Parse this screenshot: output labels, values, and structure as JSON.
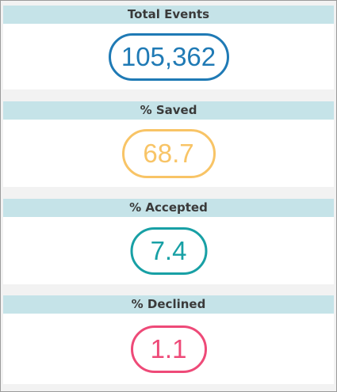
{
  "metrics": [
    {
      "title": "Total Events",
      "value": "105,362",
      "color": "#1f7ab5"
    },
    {
      "title": "% Saved",
      "value": "68.7",
      "color": "#f8c466"
    },
    {
      "title": "% Accepted",
      "value": "7.4",
      "color": "#18a0a5"
    },
    {
      "title": "% Declined",
      "value": "1.1",
      "color": "#ee4a78"
    }
  ]
}
